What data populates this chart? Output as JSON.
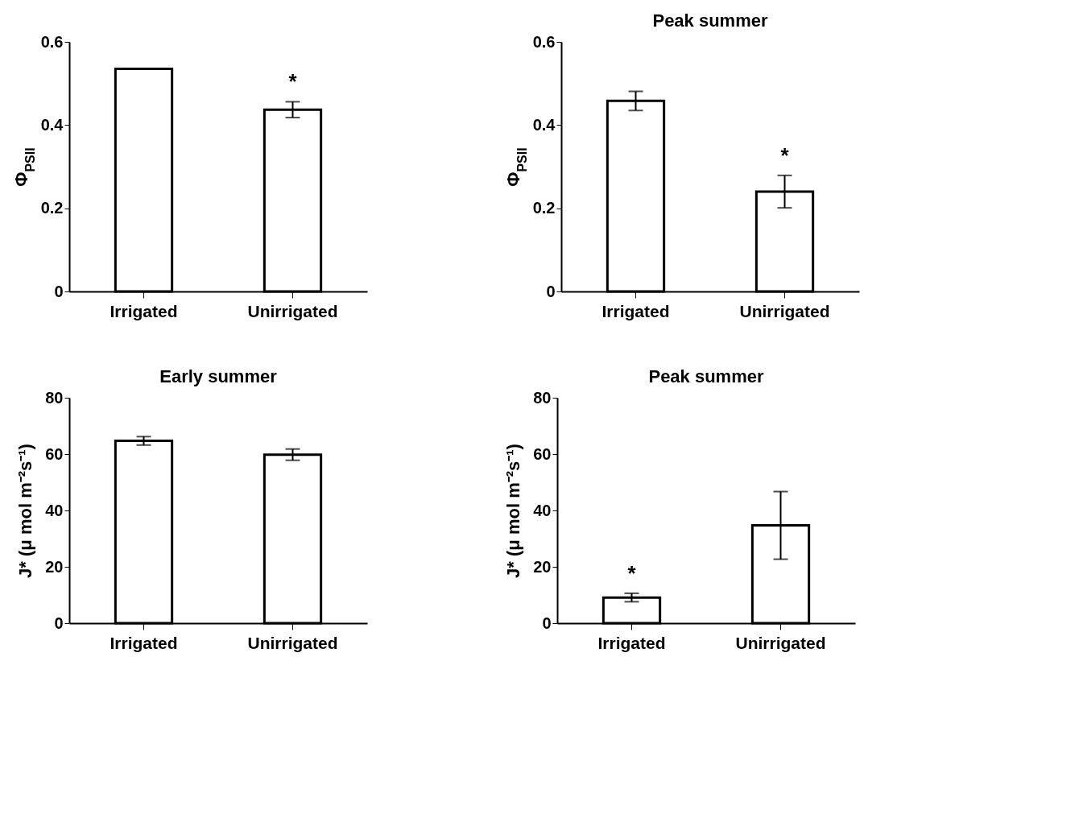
{
  "chart_data": [
    {
      "type": "bar",
      "categories": [
        "Irrigated",
        "Unirrigated"
      ],
      "ylabel": "Φ$_{PSII}$",
      "color": "#ffffff",
      "values": [
        0.535,
        0.437
      ],
      "errors": [
        null,
        0.019
      ],
      "ylim": [
        0,
        0.6
      ],
      "yticks": [
        0,
        0.2,
        0.4,
        0.6
      ],
      "grid": false,
      "annotations": [
        {
          "text": "*",
          "x": "Unirrigated",
          "y": 0.437
        }
      ]
    },
    {
      "type": "bar",
      "title": "Peak summer",
      "categories": [
        "Irrigated",
        "Unirrigated"
      ],
      "ylabel": "Φ$_{PSII}$",
      "color": "#ffffff",
      "values": [
        0.458,
        0.24
      ],
      "errors": [
        0.023,
        0.039
      ],
      "ylim": [
        0,
        0.6
      ],
      "yticks": [
        0,
        0.2,
        0.4,
        0.6
      ],
      "grid": false,
      "annotations": [
        {
          "text": "*",
          "x": "Unirrigated",
          "y": 0.24
        }
      ]
    },
    {
      "type": "bar",
      "title": "Early summer",
      "categories": [
        "Irrigated",
        "Unirrigated"
      ],
      "ylabel": "J* (μ mol m⁻²s⁻¹)",
      "color": "#ffffff",
      "values": [
        64.7,
        59.8
      ],
      "errors": [
        1.5,
        2
      ],
      "ylim": [
        0,
        80
      ],
      "yticks": [
        0,
        20,
        40,
        60,
        80
      ],
      "grid": false
    },
    {
      "type": "bar",
      "title": "Peak summer",
      "categories": [
        "Irrigated",
        "Unirrigated"
      ],
      "ylabel": "J* (μ mol m⁻²s⁻¹)",
      "color": "#ffffff",
      "values": [
        9.1,
        34.7
      ],
      "errors": [
        1.5,
        12
      ],
      "ylim": [
        0,
        80
      ],
      "yticks": [
        0,
        20,
        40,
        60,
        80
      ],
      "grid": false,
      "annotations": [
        {
          "text": "*",
          "x": "Irrigated",
          "y": 9.1
        }
      ]
    }
  ]
}
